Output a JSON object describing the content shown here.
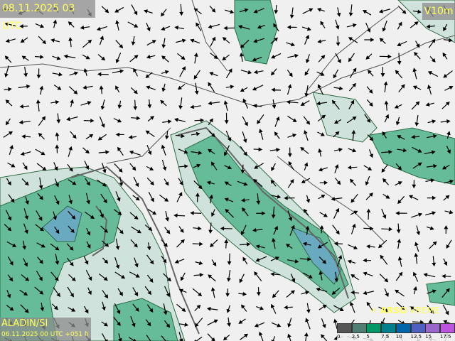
{
  "header": {
    "valid_time": "08.11.2025 03 UTC",
    "parameter": "V10m"
  },
  "model": {
    "name": "ALADIN/SI",
    "run": "06.11.2025 00 UTC +051 h"
  },
  "brand": {
    "part1": "ARSO",
    "part2": "VREME",
    "icon": "sun-logo-icon"
  },
  "legend": {
    "ticks": [
      "0",
      "2.5",
      "5",
      "7.5",
      "10",
      "12.5",
      "15",
      "17.5"
    ],
    "colors": [
      "#555555",
      "#4f7f72",
      "#009966",
      "#00808a",
      "#0066aa",
      "#5060c0",
      "#9966cc",
      "#bb55dd"
    ]
  },
  "colors": {
    "land": "#f0f0f0",
    "sea_wind_light": "#cfe3dc",
    "wind_mid": "#66bb99",
    "wind_high": "#6aaac0",
    "label_text": "#ffff55"
  }
}
